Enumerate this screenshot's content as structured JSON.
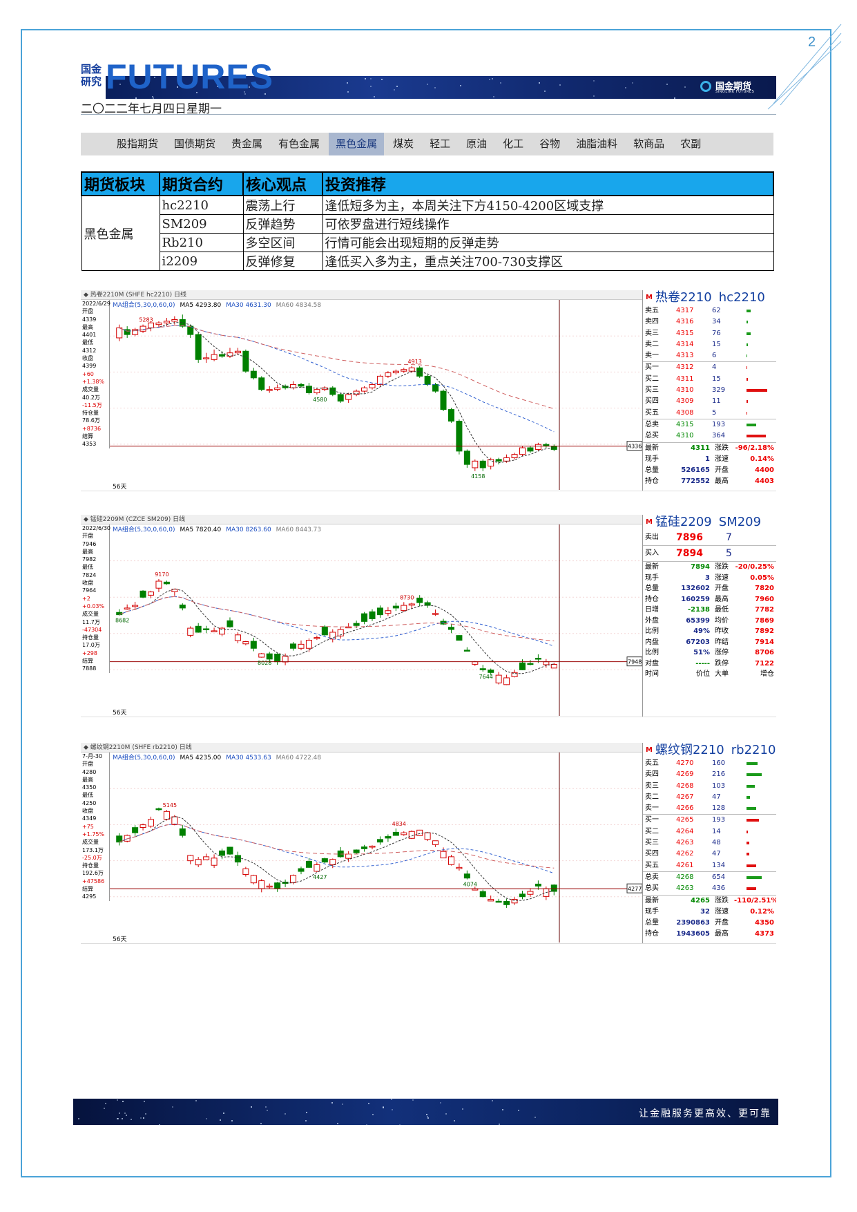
{
  "page_number": "2",
  "header": {
    "logo_cn_line1": "国金",
    "logo_cn_line2": "研究",
    "logo_en": "FUTURES",
    "brand_cn": "国金期货",
    "brand_en": "SINOLINK FUTURES"
  },
  "date": "二〇二二年七月四日星期一",
  "nav": [
    "股指期货",
    "国债期货",
    "贵金属",
    "有色金属",
    "黑色金属",
    "煤炭",
    "轻工",
    "原油",
    "化工",
    "谷物",
    "油脂油料",
    "软商品",
    "农副"
  ],
  "nav_active": 4,
  "table": {
    "headers": [
      "期货板块",
      "期货合约",
      "核心观点",
      "投资推荐"
    ],
    "sector": "黑色金属",
    "rows": [
      {
        "contract": "hc2210",
        "view": "震荡上行",
        "advice": "逢低短多为主，本周关注下方4150-4200区域支撑"
      },
      {
        "contract": "SM209",
        "view": "反弹趋势",
        "advice": "可依罗盘进行短线操作"
      },
      {
        "contract": "Rb210",
        "view": "多空区间",
        "advice": "行情可能会出现短期的反弹走势"
      },
      {
        "contract": "i2209",
        "view": "反弹修复",
        "advice": "逢低买入多为主，重点关注700-730支撑区"
      }
    ]
  },
  "charts": [
    {
      "topbar": "◆ 热卷2210M (SHFE hc2210)  日线",
      "ma": [
        "MA组合(5,30,0,60,0)",
        "MA5 4293.80",
        "MA30 4631.30",
        "MA60 4834.58"
      ],
      "left": [
        "2022/6/29",
        "开盘",
        "4339",
        "最高",
        "4401",
        "最低",
        "4312",
        "收盘",
        "4399",
        "+60",
        "+1.38%",
        "成交量",
        "40.2万",
        "-11.5万",
        "持仓量",
        "78.6万",
        "+8736",
        "结算",
        "4353"
      ],
      "days": "56天",
      "price_marker": "4336",
      "candles": [
        [
          4380,
          4440,
          4360,
          4460
        ],
        [
          4430,
          4400,
          4380,
          4450
        ],
        [
          4400,
          4430,
          4390,
          4440
        ],
        [
          4420,
          4450,
          4410,
          4460
        ],
        [
          4440,
          4470,
          4420,
          4480
        ],
        [
          4460,
          4470,
          4440,
          4480
        ],
        [
          4470,
          4480,
          4450,
          4500
        ],
        [
          4480,
          4490,
          4460,
          4510
        ],
        [
          4490,
          4450,
          4440,
          4520
        ],
        [
          4450,
          4400,
          4380,
          4460
        ],
        [
          4400,
          4250,
          4230,
          4410
        ],
        [
          4260,
          4260,
          4230,
          4290
        ],
        [
          4250,
          4280,
          4240,
          4310
        ],
        [
          4280,
          4270,
          4260,
          4300
        ],
        [
          4270,
          4290,
          4260,
          4320
        ],
        [
          4290,
          4300,
          4280,
          4320
        ],
        [
          4300,
          4180,
          4170,
          4310
        ],
        [
          4180,
          4140,
          4130,
          4200
        ],
        [
          4140,
          4070,
          4060,
          4150
        ],
        [
          4070,
          4070,
          4050,
          4090
        ],
        [
          4070,
          4080,
          4060,
          4100
        ],
        [
          4090,
          4080,
          4070,
          4100
        ],
        [
          4080,
          4100,
          4070,
          4120
        ],
        [
          4100,
          4090,
          4080,
          4110
        ],
        [
          4090,
          4050,
          4040,
          4110
        ],
        [
          4050,
          4070,
          4040,
          4080
        ],
        [
          4070,
          4080,
          4060,
          4090
        ],
        [
          4080,
          4040,
          4030,
          4090
        ],
        [
          4040,
          4000,
          3990,
          4050
        ],
        [
          4010,
          4040,
          3990,
          4050
        ],
        [
          4040,
          4060,
          4030,
          4070
        ],
        [
          4060,
          4080,
          4050,
          4090
        ],
        [
          4080,
          4100,
          4070,
          4110
        ],
        [
          4100,
          4150,
          4090,
          4160
        ],
        [
          4150,
          4170,
          4140,
          4180
        ],
        [
          4170,
          4180,
          4160,
          4190
        ],
        [
          4180,
          4190,
          4170,
          4200
        ],
        [
          4180,
          4200,
          4170,
          4210
        ],
        [
          4200,
          4150,
          4140,
          4210
        ],
        [
          4150,
          4100,
          4090,
          4160
        ],
        [
          4100,
          4060,
          4050,
          4110
        ],
        [
          4060,
          3950,
          3940,
          4070
        ],
        [
          3950,
          3880,
          3870,
          3960
        ],
        [
          3880,
          3700,
          3680,
          3890
        ],
        [
          3700,
          3620,
          3600,
          3710
        ],
        [
          3600,
          3640,
          3580,
          3650
        ],
        [
          3640,
          3600,
          3580,
          3650
        ],
        [
          3610,
          3650,
          3590,
          3660
        ],
        [
          3650,
          3640,
          3620,
          3660
        ],
        [
          3640,
          3660,
          3630,
          3680
        ],
        [
          3660,
          3680,
          3650,
          3690
        ],
        [
          3680,
          3720,
          3670,
          3730
        ],
        [
          3720,
          3700,
          3690,
          3730
        ],
        [
          3710,
          3740,
          3700,
          3750
        ],
        [
          3740,
          3730,
          3720,
          3750
        ],
        [
          3730,
          3710,
          3700,
          3740
        ]
      ],
      "ylim": [
        3550,
        4550
      ],
      "labels": [
        {
          "text": "5283",
          "x": 3
        },
        {
          "text": "4913",
          "x": 37
        },
        {
          "text": "4580",
          "x": 25
        },
        {
          "text": "4158",
          "x": 45
        }
      ],
      "quote": {
        "title_cn": "热卷2210",
        "title_code": "hc2210",
        "book": [
          [
            "卖五",
            "4317",
            "62",
            6
          ],
          [
            "卖四",
            "4316",
            "34",
            2
          ],
          [
            "卖三",
            "4315",
            "76",
            6
          ],
          [
            "卖二",
            "4314",
            "15",
            2
          ],
          [
            "卖一",
            "4313",
            "6",
            1
          ],
          [
            "买一",
            "4312",
            "4",
            1
          ],
          [
            "买二",
            "4311",
            "15",
            2
          ],
          [
            "买三",
            "4310",
            "329",
            30
          ],
          [
            "买四",
            "4309",
            "11",
            2
          ],
          [
            "买五",
            "4308",
            "5",
            1
          ]
        ],
        "totals": [
          [
            "总卖",
            "4315",
            "193",
            14
          ],
          [
            "总买",
            "4310",
            "364",
            28
          ]
        ],
        "stats": [
          [
            "最新",
            "4311",
            "涨跌",
            "-96/2.18%"
          ],
          [
            "现手",
            "1",
            "涨速",
            "0.14%"
          ],
          [
            "总量",
            "526165",
            "开盘",
            "4400"
          ],
          [
            "持仓",
            "772552",
            "最高",
            "4403"
          ]
        ]
      }
    },
    {
      "topbar": "◆ 锰硅2209M (CZCE SM209)  日线",
      "ma": [
        "MA组合(5,30,0,60,0)",
        "MA5 7820.40",
        "MA30 8263.60",
        "MA60 8443.73"
      ],
      "left": [
        "2022/6/30",
        "开盘",
        "7946",
        "最高",
        "7982",
        "最低",
        "7824",
        "收盘",
        "7964",
        "+2",
        "+0.03%",
        "成交量",
        "11.7万",
        "-47304",
        "持仓量",
        "17.0万",
        "+298",
        "结算",
        "7888"
      ],
      "days": "56天",
      "price_marker": "7948",
      "candles": [],
      "ylim": [
        7550,
        9200
      ],
      "labels": [
        {
          "text": "9170",
          "x": 5
        },
        {
          "text": "8682",
          "x": 0
        },
        {
          "text": "8730",
          "x": 36
        },
        {
          "text": "8028",
          "x": 18
        },
        {
          "text": "7644",
          "x": 46
        }
      ],
      "quote": {
        "title_cn": "锰硅2209",
        "title_code": "SM209",
        "book": [
          [
            "卖出",
            "7896",
            "7",
            0
          ],
          [
            "买入",
            "7894",
            "5",
            0
          ]
        ],
        "totals": [],
        "stats": [
          [
            "最新",
            "7894",
            "涨跌",
            "-20/0.25%"
          ],
          [
            "现手",
            "3",
            "涨速",
            "0.05%"
          ],
          [
            "总量",
            "132602",
            "开盘",
            "7820"
          ],
          [
            "持仓",
            "160259",
            "最高",
            "7960"
          ],
          [
            "日增",
            "-2138",
            "最低",
            "7782"
          ],
          [
            "外盘",
            "65399",
            "均价",
            "7869"
          ],
          [
            "比例",
            "49%",
            "昨收",
            "7892"
          ],
          [
            "内盘",
            "67203",
            "昨结",
            "7914"
          ],
          [
            "比例",
            "51%",
            "涨停",
            "8706"
          ],
          [
            "对盘",
            "-----",
            "跌停",
            "7122"
          ],
          [
            "时间",
            "价位",
            "大单",
            "增仓"
          ]
        ]
      }
    },
    {
      "topbar": "◆ 螺纹钢2210M (SHFE rb2210)  日线",
      "ma": [
        "MA组合(5,30,0,60,0)",
        "MA5 4235.00",
        "MA30 4533.63",
        "MA60 4722.48"
      ],
      "left": [
        "7-月-30",
        "开盘",
        "4280",
        "最高",
        "4350",
        "最低",
        "4250",
        "收盘",
        "4349",
        "+75",
        "+1.75%",
        "成交量",
        "173.1万",
        "-25.0万",
        "持仓量",
        "192.6万",
        "+47586",
        "结算",
        "4295"
      ],
      "days": "56天",
      "price_marker": "4277",
      "candles": [],
      "ylim": [
        3950,
        5200
      ],
      "labels": [
        {
          "text": "5145",
          "x": 6
        },
        {
          "text": "4834",
          "x": 35
        },
        {
          "text": "4427",
          "x": 25
        },
        {
          "text": "4074",
          "x": 44
        }
      ],
      "quote": {
        "title_cn": "螺纹钢2210",
        "title_code": "rb2210",
        "book": [
          [
            "卖五",
            "4270",
            "160",
            16
          ],
          [
            "卖四",
            "4269",
            "216",
            22
          ],
          [
            "卖三",
            "4268",
            "103",
            12
          ],
          [
            "卖二",
            "4267",
            "47",
            5
          ],
          [
            "卖一",
            "4266",
            "128",
            14
          ],
          [
            "买一",
            "4265",
            "193",
            18
          ],
          [
            "买二",
            "4264",
            "14",
            2
          ],
          [
            "买三",
            "4263",
            "48",
            4
          ],
          [
            "买四",
            "4262",
            "47",
            4
          ],
          [
            "买五",
            "4261",
            "134",
            14
          ]
        ],
        "totals": [
          [
            "总卖",
            "4268",
            "654",
            22
          ],
          [
            "总买",
            "4263",
            "436",
            14
          ]
        ],
        "stats": [
          [
            "最新",
            "4265",
            "涨跌",
            "-110/2.51%"
          ],
          [
            "现手",
            "32",
            "涨速",
            "0.12%"
          ],
          [
            "总量",
            "2390863",
            "开盘",
            "4350"
          ],
          [
            "持仓",
            "1943605",
            "最高",
            "4373"
          ]
        ]
      }
    }
  ],
  "footer": {
    "slogan": "让金融服务更高效、更可靠"
  },
  "colors": {
    "accent": "#18a6ec",
    "frame": "#4aa3d8",
    "up": "#e00000",
    "down": "#009900"
  }
}
